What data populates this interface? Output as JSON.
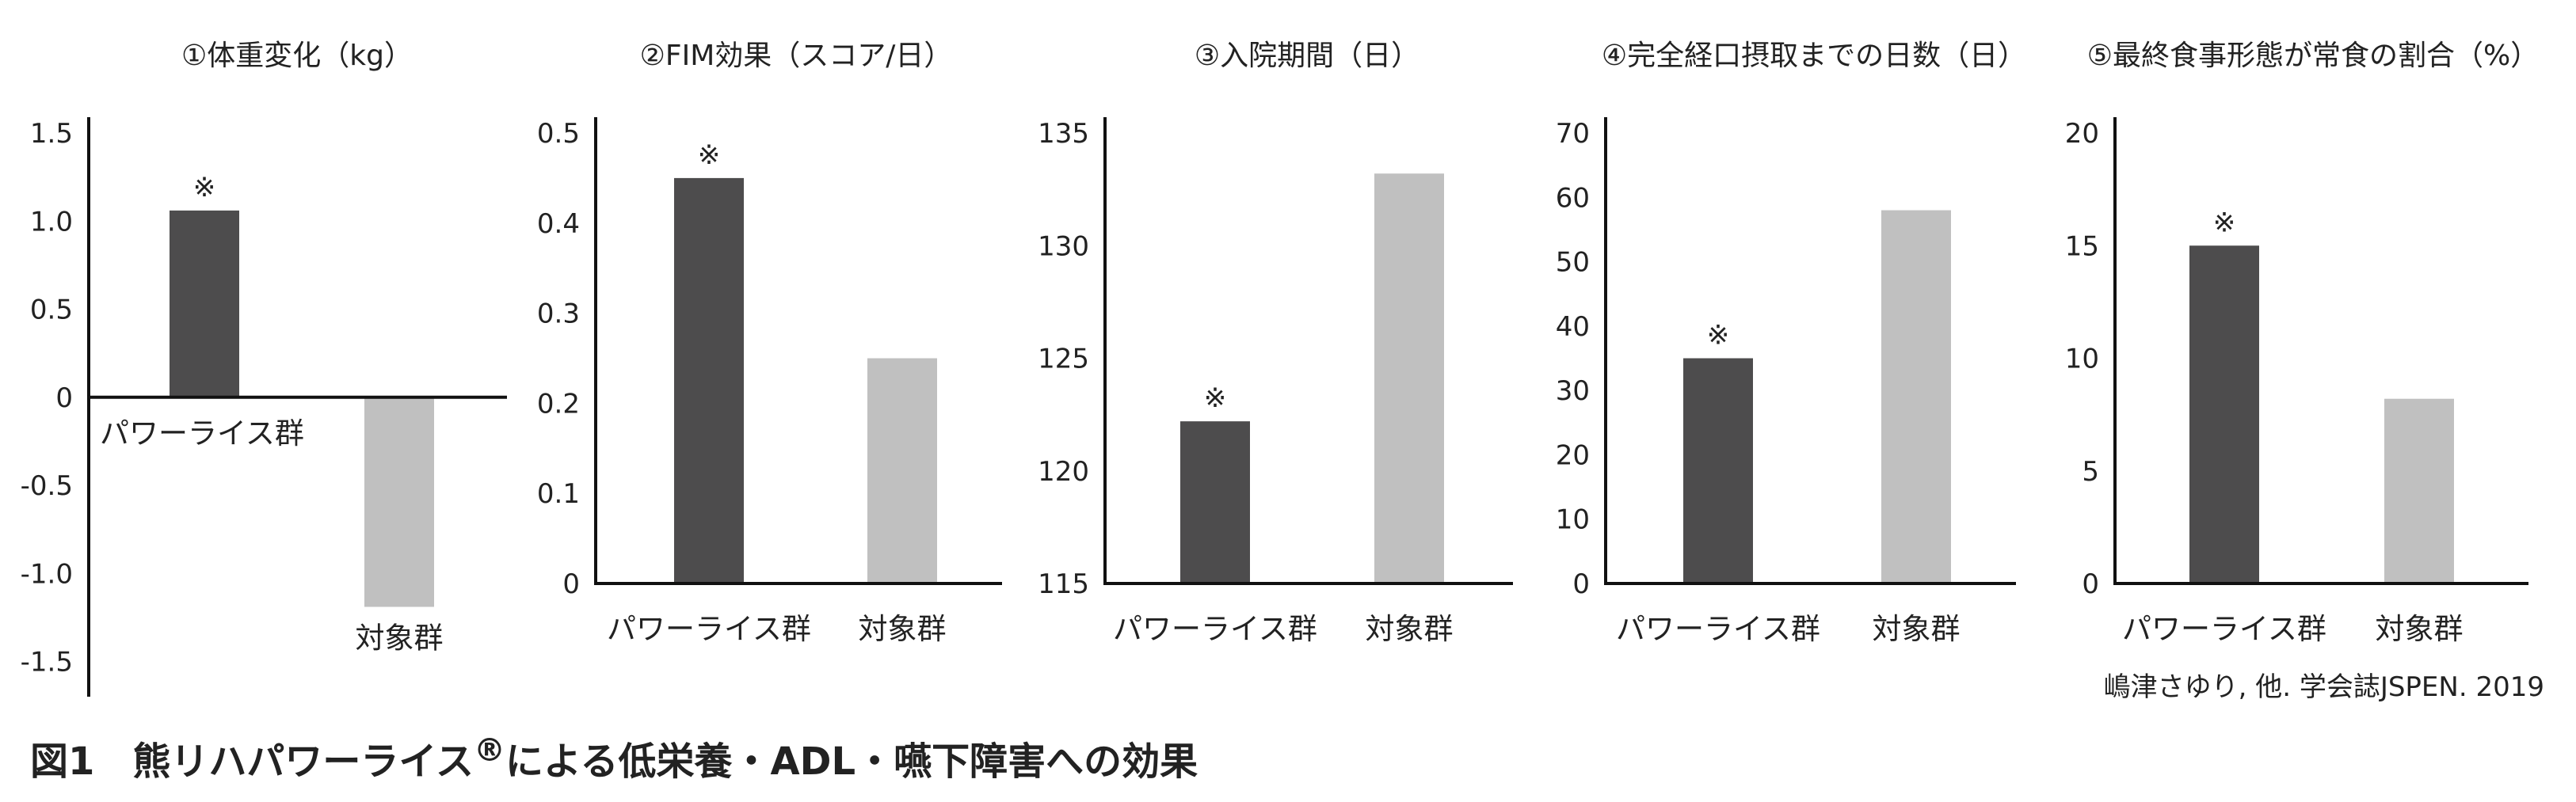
{
  "chart_data": [
    {
      "type": "bar",
      "title": "①体重変化（kg）",
      "categories": [
        "パワーライス群",
        "対象群"
      ],
      "values": [
        1.06,
        -1.19
      ],
      "ylim": [
        -1.7,
        1.5
      ],
      "yticks": [
        "1.5",
        "1.0",
        "0.5",
        "0",
        "-0.5",
        "-1.0",
        "-1.5"
      ],
      "significance_marks": [
        "※",
        ""
      ],
      "category_label_placement": "at-zero-line"
    },
    {
      "type": "bar",
      "title": "②FIM効果（スコア/日）",
      "categories": [
        "パワーライス群",
        "対象群"
      ],
      "values": [
        0.45,
        0.25
      ],
      "ylim": [
        0,
        0.5
      ],
      "yticks": [
        "0.5",
        "0.4",
        "0.3",
        "0.2",
        "0.1",
        "0"
      ],
      "significance_marks": [
        "※",
        ""
      ]
    },
    {
      "type": "bar",
      "title": "③入院期間（日）",
      "categories": [
        "パワーライス群",
        "対象群"
      ],
      "values": [
        122.2,
        133.2
      ],
      "ylim": [
        115,
        135
      ],
      "yticks": [
        "135",
        "130",
        "125",
        "120",
        "115"
      ],
      "significance_marks": [
        "※",
        ""
      ]
    },
    {
      "type": "bar",
      "title": "④完全経口摂取までの日数（日）",
      "categories": [
        "パワーライス群",
        "対象群"
      ],
      "values": [
        35,
        58
      ],
      "ylim": [
        0,
        70
      ],
      "yticks": [
        "70",
        "60",
        "50",
        "40",
        "30",
        "20",
        "10",
        "0"
      ],
      "significance_marks": [
        "※",
        ""
      ]
    },
    {
      "type": "bar",
      "title": "⑤最終食事形態が常食の割合（%）",
      "categories": [
        "パワーライス群",
        "対象群"
      ],
      "values": [
        15,
        8.2
      ],
      "ylim": [
        0,
        20
      ],
      "yticks": [
        "20",
        "15",
        "10",
        "5",
        "0"
      ],
      "significance_marks": [
        "※",
        ""
      ]
    }
  ],
  "colors": {
    "group_a": "#4d4c4d",
    "group_b": "#c0c0c0",
    "axis": "#111111"
  },
  "source": "嶋津さゆり, 他. 学会誌JSPEN. 2019",
  "caption": {
    "figure_no": "図1",
    "text_before": "熊リハパワーライス",
    "registered_mark": "®",
    "text_after": "による低栄養・ADL・嚥下障害への効果"
  }
}
